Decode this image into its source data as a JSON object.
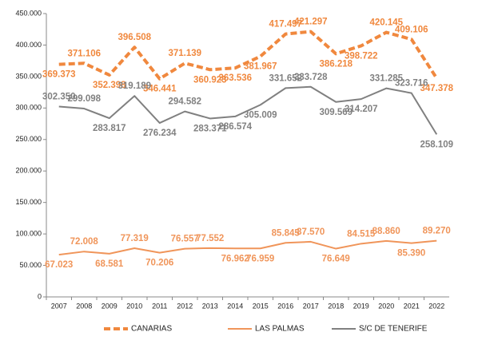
{
  "chart_data": {
    "type": "line",
    "categories": [
      "2007",
      "2008",
      "2009",
      "2010",
      "2011",
      "2012",
      "2013",
      "2014",
      "2015",
      "2016",
      "2017",
      "2018",
      "2019",
      "2020",
      "2021",
      "2022"
    ],
    "series": [
      {
        "name": "CANARIAS",
        "color": "#f0883e",
        "dashed": true,
        "width": 4,
        "values": [
          369373,
          371106,
          352398,
          396508,
          346441,
          371139,
          360923,
          363536,
          381967,
          417497,
          421297,
          386218,
          398722,
          420145,
          409106,
          347378
        ],
        "value_labels": [
          "369.373",
          "371.106",
          "352.398",
          "396.508",
          "346.441",
          "371.139",
          "360.923",
          "363.536",
          "381.967",
          "417.497",
          "421.297",
          "386.218",
          "398.722",
          "420.145",
          "409.106",
          "347.378"
        ]
      },
      {
        "name": "LAS PALMAS",
        "color": "#f0955a",
        "dashed": false,
        "width": 2,
        "values": [
          67023,
          72008,
          68581,
          77319,
          70206,
          76557,
          77552,
          76962,
          76959,
          85845,
          87570,
          76649,
          84515,
          88860,
          85390,
          89270
        ],
        "value_labels": [
          "67.023",
          "72.008",
          "68.581",
          "77.319",
          "70.206",
          "76.557",
          "77.552",
          "76.962",
          "76.959",
          "85.845",
          "87.570",
          "76.649",
          "84.515",
          "88.860",
          "85.390",
          "89.270"
        ]
      },
      {
        "name": "S/C DE TENERIFE",
        "color": "#808080",
        "dashed": false,
        "width": 2,
        "values": [
          302350,
          299098,
          283817,
          319189,
          276234,
          294582,
          283371,
          286574,
          305009,
          331652,
          333728,
          309569,
          314207,
          331285,
          323716,
          258109
        ],
        "value_labels": [
          "302.350",
          "299.098",
          "283.817",
          "319.189",
          "276.234",
          "294.582",
          "283.371",
          "286.574",
          "305.009",
          "331.652",
          "333.728",
          "309.569",
          "314.207",
          "331.285",
          "323.716",
          "258.109"
        ]
      }
    ],
    "ylim": [
      0,
      450000
    ],
    "yticks": [
      0,
      {
        "value": 50000,
        "label": "50.000"
      },
      {
        "value": 100000,
        "label": "100.000"
      },
      {
        "value": 150000,
        "label": "150.000"
      },
      {
        "value": 200000,
        "label": "200.000"
      },
      {
        "value": 250000,
        "label": "250.000"
      },
      {
        "value": 300000,
        "label": "300.000"
      },
      {
        "value": 350000,
        "label": "350.000"
      },
      {
        "value": 400000,
        "label": "400.000"
      },
      {
        "value": 450000,
        "label": "450.000"
      }
    ],
    "legend": "bottom"
  }
}
